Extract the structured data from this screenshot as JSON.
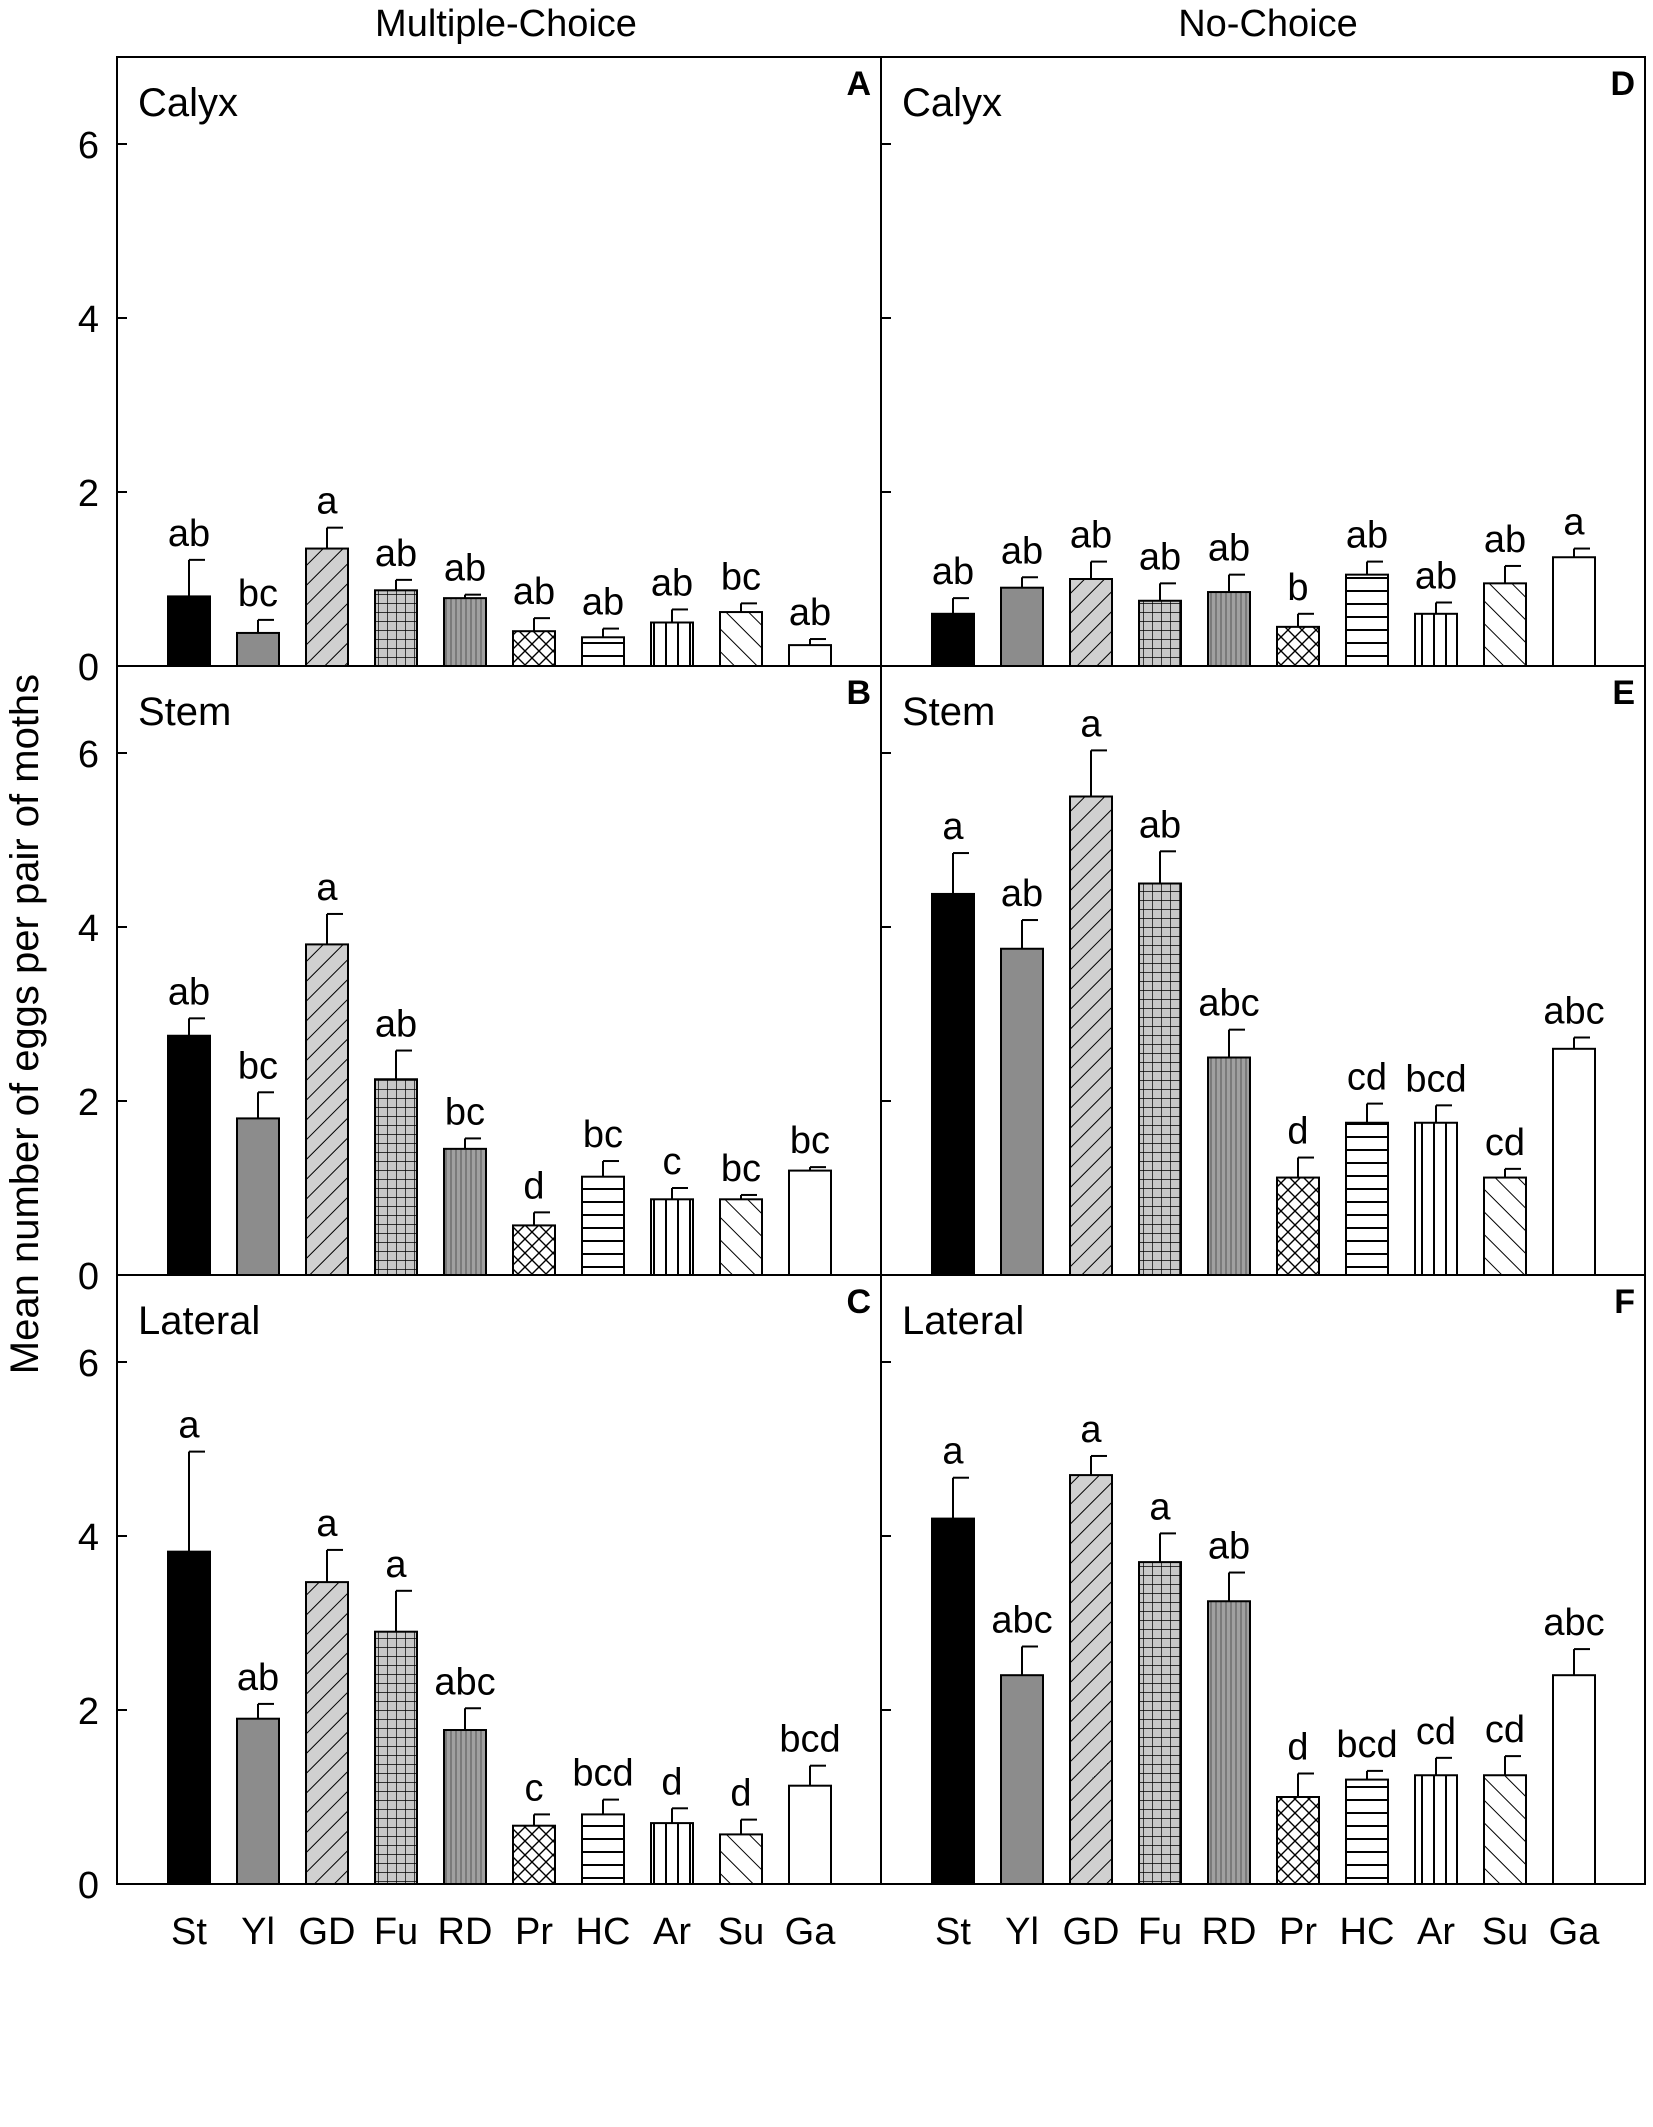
{
  "figure": {
    "column_titles": [
      "Multiple-Choice",
      "No-Choice"
    ],
    "ylabel": "Mean number of eggs per pair of moths"
  },
  "chart_data": [
    {
      "type": "bar",
      "panel": "A",
      "location": "Calyx",
      "treatment": "Multiple-Choice",
      "categories": [
        "St",
        "Yl",
        "GD",
        "Fu",
        "RD",
        "Pr",
        "HC",
        "Ar",
        "Su",
        "Ga"
      ],
      "values": [
        0.8,
        0.38,
        1.35,
        0.87,
        0.78,
        0.4,
        0.33,
        0.5,
        0.62,
        0.24
      ],
      "errors": [
        0.42,
        0.15,
        0.24,
        0.12,
        0.04,
        0.15,
        0.1,
        0.15,
        0.1,
        0.07
      ],
      "labels": [
        "ab",
        "bc",
        "a",
        "ab",
        "ab",
        "ab",
        "ab",
        "ab",
        "bc",
        "ab"
      ],
      "ylim": [
        0,
        7
      ],
      "yticks": [
        0,
        2,
        4,
        6
      ],
      "xlabel": "",
      "ylabel": ""
    },
    {
      "type": "bar",
      "panel": "B",
      "location": "Stem",
      "treatment": "Multiple-Choice",
      "categories": [
        "St",
        "Yl",
        "GD",
        "Fu",
        "RD",
        "Pr",
        "HC",
        "Ar",
        "Su",
        "Ga"
      ],
      "values": [
        2.75,
        1.8,
        3.8,
        2.25,
        1.45,
        0.57,
        1.13,
        0.87,
        0.87,
        1.2
      ],
      "errors": [
        0.2,
        0.3,
        0.35,
        0.33,
        0.12,
        0.15,
        0.18,
        0.13,
        0.05,
        0.04
      ],
      "labels": [
        "ab",
        "bc",
        "a",
        "ab",
        "bc",
        "d",
        "bc",
        "c",
        "bc",
        "bc"
      ],
      "ylim": [
        0,
        7
      ],
      "yticks": [
        0,
        2,
        4,
        6
      ],
      "xlabel": "",
      "ylabel": ""
    },
    {
      "type": "bar",
      "panel": "C",
      "location": "Lateral",
      "treatment": "Multiple-Choice",
      "categories": [
        "St",
        "Yl",
        "GD",
        "Fu",
        "RD",
        "Pr",
        "HC",
        "Ar",
        "Su",
        "Ga"
      ],
      "values": [
        3.82,
        1.9,
        3.47,
        2.9,
        1.77,
        0.67,
        0.8,
        0.7,
        0.57,
        1.13
      ],
      "errors": [
        1.15,
        0.17,
        0.37,
        0.47,
        0.25,
        0.13,
        0.17,
        0.17,
        0.17,
        0.23
      ],
      "labels": [
        "a",
        "ab",
        "a",
        "a",
        "abc",
        "c",
        "bcd",
        "d",
        "d",
        "bcd"
      ],
      "ylim": [
        0,
        7
      ],
      "yticks": [
        0,
        2,
        4,
        6
      ],
      "xlabel": "",
      "ylabel": ""
    },
    {
      "type": "bar",
      "panel": "D",
      "location": "Calyx",
      "treatment": "No-Choice",
      "categories": [
        "St",
        "Yl",
        "GD",
        "Fu",
        "RD",
        "Pr",
        "HC",
        "Ar",
        "Su",
        "Ga"
      ],
      "values": [
        0.6,
        0.9,
        1.0,
        0.75,
        0.85,
        0.45,
        1.05,
        0.6,
        0.95,
        1.25
      ],
      "errors": [
        0.18,
        0.12,
        0.2,
        0.2,
        0.2,
        0.15,
        0.15,
        0.13,
        0.2,
        0.1
      ],
      "labels": [
        "ab",
        "ab",
        "ab",
        "ab",
        "ab",
        "b",
        "ab",
        "ab",
        "ab",
        "a"
      ],
      "ylim": [
        0,
        7
      ],
      "yticks": [
        0,
        2,
        4,
        6
      ],
      "xlabel": "",
      "ylabel": ""
    },
    {
      "type": "bar",
      "panel": "E",
      "location": "Stem",
      "treatment": "No-Choice",
      "categories": [
        "St",
        "Yl",
        "GD",
        "Fu",
        "RD",
        "Pr",
        "HC",
        "Ar",
        "Su",
        "Ga"
      ],
      "values": [
        4.38,
        3.75,
        5.5,
        4.5,
        2.5,
        1.12,
        1.75,
        1.75,
        1.12,
        2.6
      ],
      "errors": [
        0.47,
        0.33,
        0.53,
        0.37,
        0.32,
        0.23,
        0.22,
        0.2,
        0.1,
        0.13
      ],
      "labels": [
        "a",
        "ab",
        "a",
        "ab",
        "abc",
        "d",
        "cd",
        "bcd",
        "cd",
        "abc"
      ],
      "ylim": [
        0,
        7
      ],
      "yticks": [
        0,
        2,
        4,
        6
      ],
      "xlabel": "",
      "ylabel": ""
    },
    {
      "type": "bar",
      "panel": "F",
      "location": "Lateral",
      "treatment": "No-Choice",
      "categories": [
        "St",
        "Yl",
        "GD",
        "Fu",
        "RD",
        "Pr",
        "HC",
        "Ar",
        "Su",
        "Ga"
      ],
      "values": [
        4.2,
        2.4,
        4.7,
        3.7,
        3.25,
        1.0,
        1.2,
        1.25,
        1.25,
        2.4
      ],
      "errors": [
        0.47,
        0.33,
        0.22,
        0.33,
        0.33,
        0.27,
        0.1,
        0.2,
        0.22,
        0.3
      ],
      "labels": [
        "a",
        "abc",
        "a",
        "a",
        "ab",
        "d",
        "bcd",
        "cd",
        "cd",
        "abc"
      ],
      "ylim": [
        0,
        7
      ],
      "yticks": [
        0,
        2,
        4,
        6
      ],
      "xlabel": "",
      "ylabel": ""
    }
  ],
  "styles": {
    "St": "black",
    "Yl": "gray",
    "GD": "diag-gray",
    "Fu": "grid-gray",
    "RD": "vline-gray",
    "Pr": "crosshatch",
    "HC": "hline",
    "Ar": "vline",
    "Su": "backdiag",
    "Ga": "white"
  }
}
